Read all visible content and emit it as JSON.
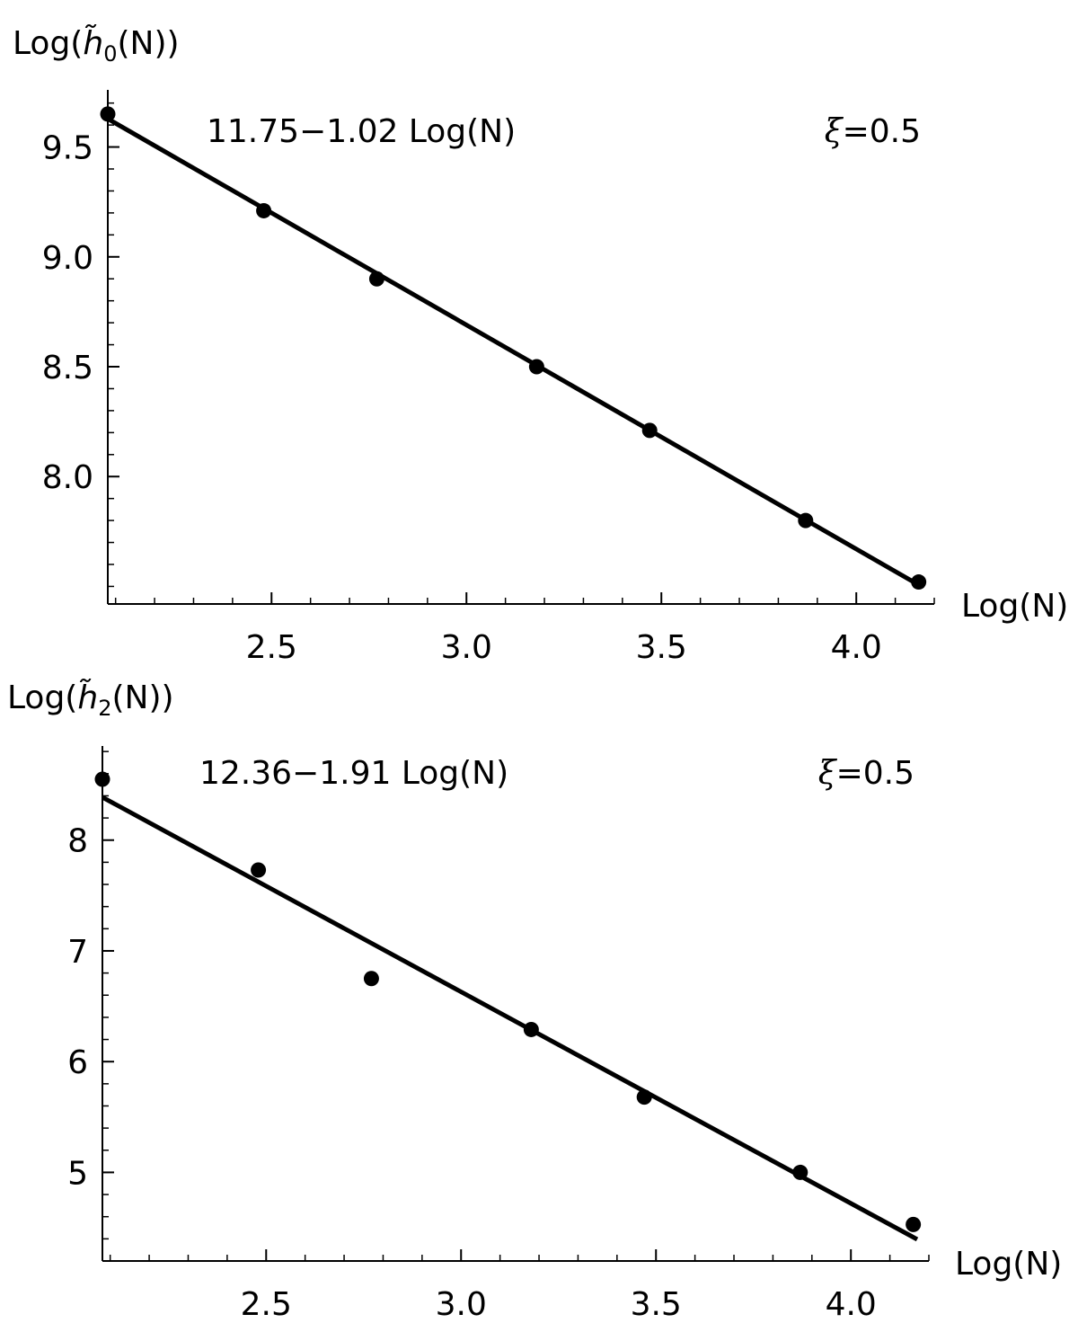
{
  "chart_data": [
    {
      "type": "scatter",
      "ylabel": "Log(h̃0(N))",
      "ylabel_parts": {
        "prefix": "Log(",
        "symbol": "h̃",
        "subscript": "0",
        "suffix": "(N))"
      },
      "xlabel": "Log(N)",
      "fit_label": "11.75−1.02 Log(N)",
      "param_label": {
        "symbol": "ξ",
        "text": "=0.5"
      },
      "xlim": [
        2.08,
        4.2
      ],
      "ylim": [
        7.42,
        9.76
      ],
      "xticks": [
        2.5,
        3.0,
        3.5,
        4.0
      ],
      "xtick_labels": [
        "2.5",
        "3.0",
        "3.5",
        "4.0"
      ],
      "yticks": [
        8.0,
        8.5,
        9.0,
        9.5
      ],
      "ytick_labels": [
        "8.0",
        "8.5",
        "9.0",
        "9.5"
      ],
      "x_minor_step": 0.1,
      "y_minor_step": 0.1,
      "fit": {
        "intercept": 11.75,
        "slope": -1.02,
        "x_range": [
          2.08,
          4.17
        ]
      },
      "points": [
        {
          "x": 2.08,
          "y": 9.65
        },
        {
          "x": 2.48,
          "y": 9.21
        },
        {
          "x": 2.77,
          "y": 8.9
        },
        {
          "x": 3.18,
          "y": 8.5
        },
        {
          "x": 3.47,
          "y": 8.21
        },
        {
          "x": 3.87,
          "y": 7.8
        },
        {
          "x": 4.16,
          "y": 7.52
        }
      ]
    },
    {
      "type": "scatter",
      "ylabel": "Log(h̃2(N))",
      "ylabel_parts": {
        "prefix": "Log(",
        "symbol": "h̃",
        "subscript": "2",
        "suffix": "(N))"
      },
      "xlabel": "Log(N)",
      "fit_label": "12.36−1.91 Log(N)",
      "param_label": {
        "symbol": "ξ",
        "text": "=0.5"
      },
      "xlim": [
        2.08,
        4.2
      ],
      "ylim": [
        4.2,
        8.85
      ],
      "xticks": [
        2.5,
        3.0,
        3.5,
        4.0
      ],
      "xtick_labels": [
        "2.5",
        "3.0",
        "3.5",
        "4.0"
      ],
      "yticks": [
        5,
        6,
        7,
        8
      ],
      "ytick_labels": [
        "5",
        "6",
        "7",
        "8"
      ],
      "x_minor_step": 0.1,
      "y_minor_step": 0.2,
      "fit": {
        "intercept": 12.36,
        "slope": -1.91,
        "x_range": [
          2.08,
          4.17
        ]
      },
      "points": [
        {
          "x": 2.08,
          "y": 8.55
        },
        {
          "x": 2.48,
          "y": 7.73
        },
        {
          "x": 2.77,
          "y": 6.75
        },
        {
          "x": 3.18,
          "y": 6.29
        },
        {
          "x": 3.47,
          "y": 5.68
        },
        {
          "x": 3.87,
          "y": 5.0
        },
        {
          "x": 4.16,
          "y": 4.53
        }
      ]
    }
  ]
}
